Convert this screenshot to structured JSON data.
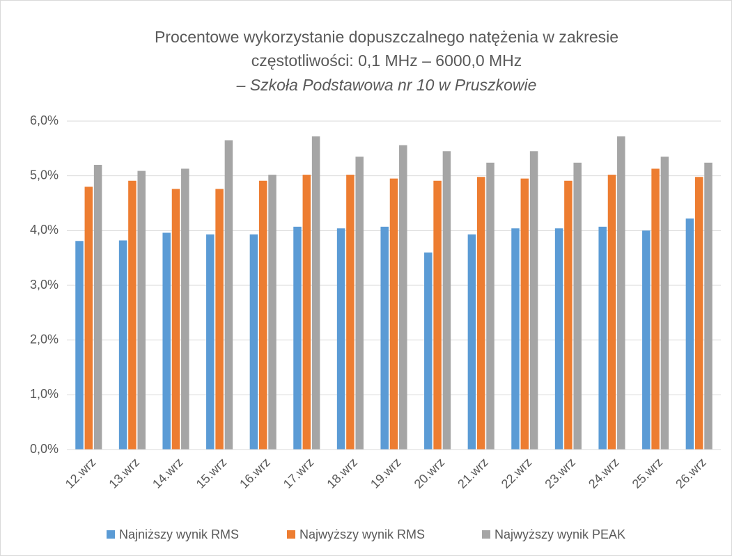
{
  "chart_data": {
    "type": "bar",
    "title": [
      "Procentowe wykorzystanie dopuszczalnego natężenia w zakresie",
      "częstotliwości: 0,1 MHz – 6000,0 MHz"
    ],
    "subtitle": "– Szkoła Podstawowa nr 10 w Pruszkowie",
    "categories": [
      "12.wrz",
      "13.wrz",
      "14.wrz",
      "15.wrz",
      "16.wrz",
      "17.wrz",
      "18.wrz",
      "19.wrz",
      "20.wrz",
      "21.wrz",
      "22.wrz",
      "23.wrz",
      "24.wrz",
      "25.wrz",
      "26.wrz"
    ],
    "series": [
      {
        "name": "Najniższy wynik RMS",
        "color": "#5b9bd5",
        "values": [
          3.81,
          3.82,
          3.96,
          3.93,
          3.93,
          4.07,
          4.04,
          4.07,
          3.6,
          3.93,
          4.04,
          4.04,
          4.07,
          4.0,
          4.22
        ]
      },
      {
        "name": "Najwyższy wynik RMS",
        "color": "#ed7d31",
        "values": [
          4.8,
          4.91,
          4.76,
          4.76,
          4.91,
          5.02,
          5.02,
          4.95,
          4.91,
          4.98,
          4.95,
          4.91,
          5.02,
          5.13,
          4.98
        ]
      },
      {
        "name": "Najwyższy wynik PEAK",
        "color": "#a5a5a5",
        "values": [
          5.2,
          5.09,
          5.13,
          5.65,
          5.02,
          5.72,
          5.35,
          5.56,
          5.45,
          5.24,
          5.45,
          5.24,
          5.72,
          5.35,
          5.24
        ]
      }
    ],
    "ylim": [
      0,
      6
    ],
    "yticks": [
      {
        "value": 0,
        "label": "0,0%"
      },
      {
        "value": 1,
        "label": "1,0%"
      },
      {
        "value": 2,
        "label": "2,0%"
      },
      {
        "value": 3,
        "label": "3,0%"
      },
      {
        "value": 4,
        "label": "4,0%"
      },
      {
        "value": 5,
        "label": "5,0%"
      },
      {
        "value": 6,
        "label": "6,0%"
      }
    ],
    "grid": true,
    "legend": "bottom"
  }
}
